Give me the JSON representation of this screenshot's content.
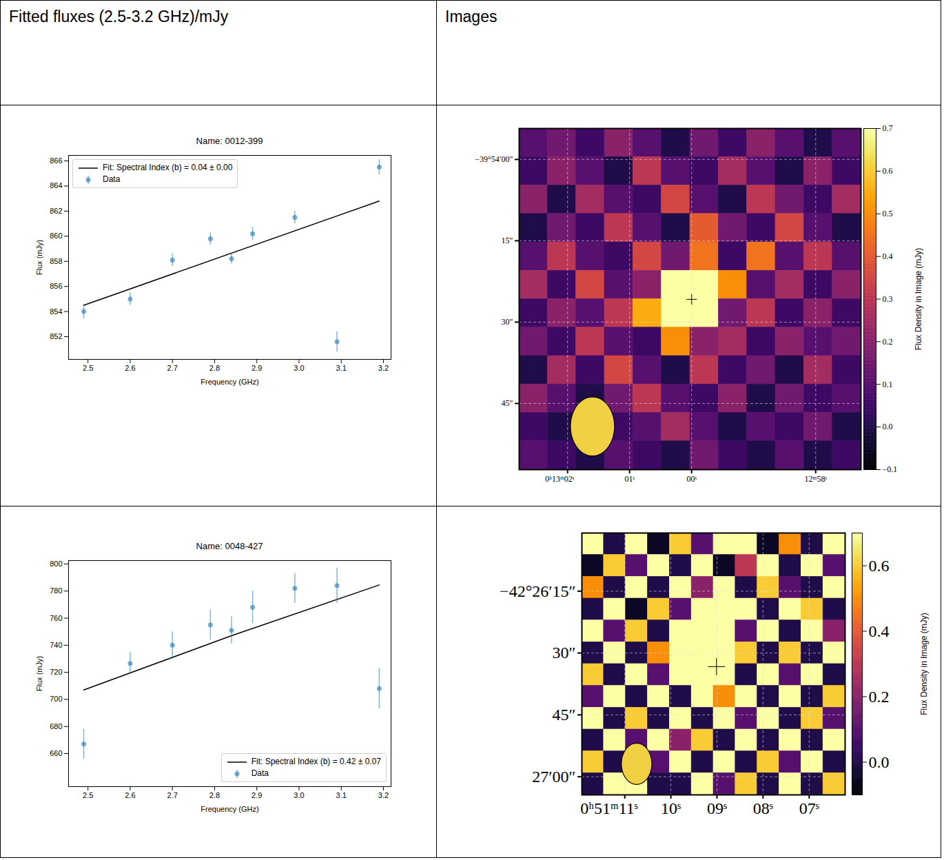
{
  "table": {
    "header": [
      "Fitted fluxes (2.5-3.2 GHz)/mJy",
      "Images"
    ]
  },
  "chart_data": [
    {
      "type": "scatter",
      "title": "Name: 0012-399",
      "x_label": "Frequency (GHz)",
      "y_label": "Flux (mJy)",
      "x": [
        2.49,
        2.6,
        2.7,
        2.79,
        2.84,
        2.89,
        2.99,
        3.09,
        3.19
      ],
      "series": [
        {
          "name": "Fit: Spectral Index (b) = 0.04 ± 0.00",
          "type": "line",
          "color": "#000000",
          "line_style": "solid",
          "x": [
            2.49,
            3.19
          ],
          "values": [
            854.5,
            862.8
          ]
        },
        {
          "name": "Data",
          "type": "scatter",
          "color": "#1f77b4",
          "marker": "circle",
          "values": [
            854.0,
            855.0,
            858.1,
            859.8,
            858.2,
            860.2,
            861.5,
            851.6,
            865.5
          ],
          "errors": [
            0.6,
            0.5,
            0.5,
            0.5,
            0.4,
            0.5,
            0.5,
            0.8,
            0.6
          ]
        }
      ],
      "xlim": [
        2.454,
        3.218
      ],
      "xticks": [
        2.5,
        2.6,
        2.7,
        2.8,
        2.9,
        {
          "value": 3,
          "label": "3.0"
        },
        3.1,
        3.2
      ],
      "ylim": [
        850.19,
        866.44
      ],
      "yticks": [
        852,
        854,
        856,
        858,
        860,
        862,
        864,
        866
      ],
      "legend": "upper left",
      "grid": false
    },
    {
      "type": "heatmap",
      "xlim": [
        782.78,
        777.27
      ],
      "xticks": [
        {
          "value": 782,
          "label": "0ʰ13ᵐ02ˢ"
        },
        {
          "value": 781,
          "label": "01ˢ"
        },
        {
          "value": 780,
          "label": "00ˢ"
        },
        {
          "value": 778,
          "label": "12ᵐ58ˢ"
        }
      ],
      "ylim": [
        -5.7,
        57.2
      ],
      "yticks": [
        {
          "value": 0,
          "label": "−39°54′00″"
        },
        {
          "value": 15,
          "label": "15″"
        },
        {
          "value": 30,
          "label": "30″"
        },
        {
          "value": 45,
          "label": "45″"
        }
      ],
      "grid": true,
      "cells": [
        [
          0.1,
          0.15,
          0.05,
          0.2,
          0.1,
          0.0,
          0.15,
          0.05,
          0.2,
          0.1,
          0.0,
          0.1
        ],
        [
          0.05,
          0.2,
          0.1,
          0.0,
          0.3,
          0.1,
          0.05,
          0.25,
          0.1,
          0.0,
          0.2,
          0.05
        ],
        [
          0.2,
          0.0,
          0.25,
          0.1,
          0.05,
          0.35,
          0.1,
          0.0,
          0.3,
          0.15,
          0.05,
          0.25
        ],
        [
          0.0,
          0.15,
          0.05,
          0.3,
          0.1,
          0.0,
          0.4,
          0.15,
          0.05,
          0.35,
          0.1,
          0.0
        ],
        [
          0.1,
          0.3,
          0.1,
          0.05,
          0.35,
          0.15,
          0.45,
          0.05,
          0.45,
          0.1,
          0.3,
          0.1
        ],
        [
          0.25,
          0.05,
          0.35,
          0.1,
          0.2,
          2.0,
          2.0,
          0.5,
          0.1,
          0.25,
          0.05,
          0.2
        ],
        [
          0.05,
          0.2,
          0.1,
          0.3,
          0.55,
          2.0,
          2.0,
          0.15,
          0.3,
          0.05,
          0.2,
          0.05
        ],
        [
          0.15,
          0.05,
          0.3,
          0.1,
          0.05,
          0.5,
          0.2,
          0.25,
          0.05,
          0.2,
          0.1,
          0.15
        ],
        [
          0.0,
          0.25,
          0.05,
          0.35,
          0.1,
          0.0,
          0.3,
          0.05,
          0.15,
          0.0,
          0.25,
          0.05
        ],
        [
          0.2,
          0.1,
          0.0,
          0.15,
          0.3,
          0.1,
          0.05,
          0.2,
          0.0,
          0.15,
          0.05,
          0.1
        ],
        [
          0.05,
          0.0,
          0.2,
          0.05,
          0.1,
          0.25,
          0.1,
          0.0,
          0.1,
          0.05,
          0.15,
          0.0
        ],
        [
          0.1,
          0.05,
          0.0,
          0.1,
          0.05,
          0.0,
          0.15,
          0.05,
          0.0,
          0.1,
          0.0,
          0.05
        ]
      ],
      "colorbar": {
        "label": "Flux Density in Image (mJy)",
        "range": [
          -0.1,
          0.7
        ],
        "ticks": [
          {
            "value": -0.1,
            "label": "−0.1"
          },
          {
            "value": 0,
            "label": "0.0"
          },
          0.1,
          0.2,
          0.3,
          0.4,
          0.5,
          0.6,
          0.7
        ]
      },
      "target": {
        "x": 780.0,
        "y": 25.8,
        "marker": "plus"
      },
      "beam": {
        "dx": 0.71,
        "dy": 10.9,
        "color": "#f2d044"
      }
    },
    {
      "type": "scatter",
      "title": "Name: 0048-427",
      "x_label": "Frequency (GHz)",
      "y_label": "Flux (mJy)",
      "x": [
        2.49,
        2.6,
        2.7,
        2.79,
        2.84,
        2.89,
        2.99,
        3.09,
        3.19
      ],
      "series": [
        {
          "name": "Fit: Spectral Index (b) = 0.42 ± 0.07",
          "type": "line",
          "color": "#000000",
          "line_style": "solid",
          "x": [
            2.49,
            2.84,
            3.19
          ],
          "values": [
            707,
            747,
            784.5
          ]
        },
        {
          "name": "Data",
          "type": "scatter",
          "color": "#1f77b4",
          "marker": "circle",
          "values": [
            667,
            726.5,
            740,
            755,
            751,
            768,
            782,
            784,
            708
          ],
          "errors": [
            11,
            8,
            10,
            11,
            10,
            12,
            11,
            13,
            15
          ]
        }
      ],
      "xlim": [
        2.454,
        3.218
      ],
      "xticks": [
        2.5,
        2.6,
        2.7,
        2.8,
        2.9,
        {
          "value": 3,
          "label": "3.0"
        },
        3.1,
        3.2
      ],
      "ylim": [
        635.6,
        802.5
      ],
      "yticks": [
        660,
        680,
        700,
        720,
        740,
        760,
        780,
        800
      ],
      "legend": "lower right",
      "grid": false
    },
    {
      "type": "heatmap",
      "xlim": [
        3071.93,
        3066.22
      ],
      "xticks": [
        {
          "value": 3071,
          "label": "0ʰ51ᵐ11ˢ"
        },
        {
          "value": 3070,
          "label": "10ˢ"
        },
        {
          "value": 3069,
          "label": "09ˢ"
        },
        {
          "value": 3068,
          "label": "08ˢ"
        },
        {
          "value": 3067,
          "label": "07ˢ"
        }
      ],
      "ylim": [
        0.9,
        64.4
      ],
      "yticks": [
        {
          "value": 15,
          "label": "−42°26′15″"
        },
        {
          "value": 30,
          "label": "30″"
        },
        {
          "value": 45,
          "label": "45″"
        },
        {
          "value": 60,
          "label": "27′00″"
        }
      ],
      "grid": true,
      "cells": [
        [
          0.7,
          0.0,
          0.8,
          -0.05,
          0.6,
          0.1,
          0.7,
          0.8,
          -0.05,
          0.5,
          0.0,
          0.7
        ],
        [
          -0.05,
          0.6,
          0.1,
          0.7,
          0.0,
          0.8,
          -0.05,
          0.3,
          0.7,
          0.0,
          0.8,
          0.1
        ],
        [
          0.5,
          0.0,
          0.7,
          0.0,
          0.8,
          0.2,
          0.7,
          0.0,
          0.6,
          0.1,
          0.0,
          0.7
        ],
        [
          0.0,
          0.8,
          -0.05,
          0.6,
          0.1,
          0.7,
          0.8,
          0.7,
          0.0,
          0.7,
          0.6,
          0.0
        ],
        [
          0.7,
          0.1,
          0.6,
          0.0,
          0.8,
          0.8,
          0.9,
          0.1,
          0.8,
          0.0,
          0.7,
          0.2
        ],
        [
          0.0,
          0.7,
          0.0,
          0.5,
          0.9,
          0.9,
          0.9,
          0.6,
          0.0,
          0.6,
          0.0,
          0.7
        ],
        [
          0.6,
          0.0,
          0.8,
          0.1,
          0.8,
          0.9,
          0.9,
          0.0,
          0.7,
          0.1,
          0.8,
          0.0
        ],
        [
          0.1,
          0.7,
          0.0,
          0.7,
          0.0,
          0.8,
          0.5,
          0.8,
          0.0,
          0.7,
          0.0,
          0.6
        ],
        [
          0.7,
          0.0,
          0.6,
          0.0,
          0.7,
          0.0,
          0.8,
          0.1,
          0.7,
          0.0,
          0.6,
          0.1
        ],
        [
          0.0,
          0.8,
          0.1,
          0.7,
          0.2,
          0.6,
          0.0,
          0.7,
          0.0,
          0.8,
          0.0,
          0.7
        ],
        [
          0.6,
          0.0,
          0.0,
          0.1,
          0.7,
          0.0,
          0.7,
          0.0,
          0.6,
          0.1,
          0.7,
          0.0
        ],
        [
          0.0,
          0.7,
          0.8,
          0.0,
          0.0,
          0.8,
          0.1,
          0.6,
          0.0,
          0.7,
          0.0,
          0.6
        ]
      ],
      "colorbar": {
        "label": "Flux Density in Image (mJy)",
        "range": [
          -0.1,
          0.7
        ],
        "ticks": [
          {
            "value": 0,
            "label": "0.0"
          },
          0.2,
          0.4,
          0.6
        ]
      },
      "target": {
        "x": 3069.01,
        "y": 33.3,
        "marker": "plus"
      },
      "beam": {
        "dx": 0.66,
        "dy": 10.0,
        "color": "#f2d044"
      }
    }
  ]
}
